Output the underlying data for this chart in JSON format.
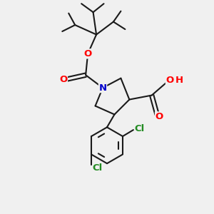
{
  "bg_color": "#f0f0f0",
  "bond_color": "#1a1a1a",
  "bond_width": 1.5,
  "atom_colors": {
    "O": "#ff0000",
    "N": "#0000cc",
    "Cl": "#228B22",
    "C": "#1a1a1a",
    "H": "#ff0000"
  },
  "font_size_atoms": 9.5,
  "font_size_small": 8,
  "figsize": [
    3.0,
    3.0
  ],
  "dpi": 100
}
